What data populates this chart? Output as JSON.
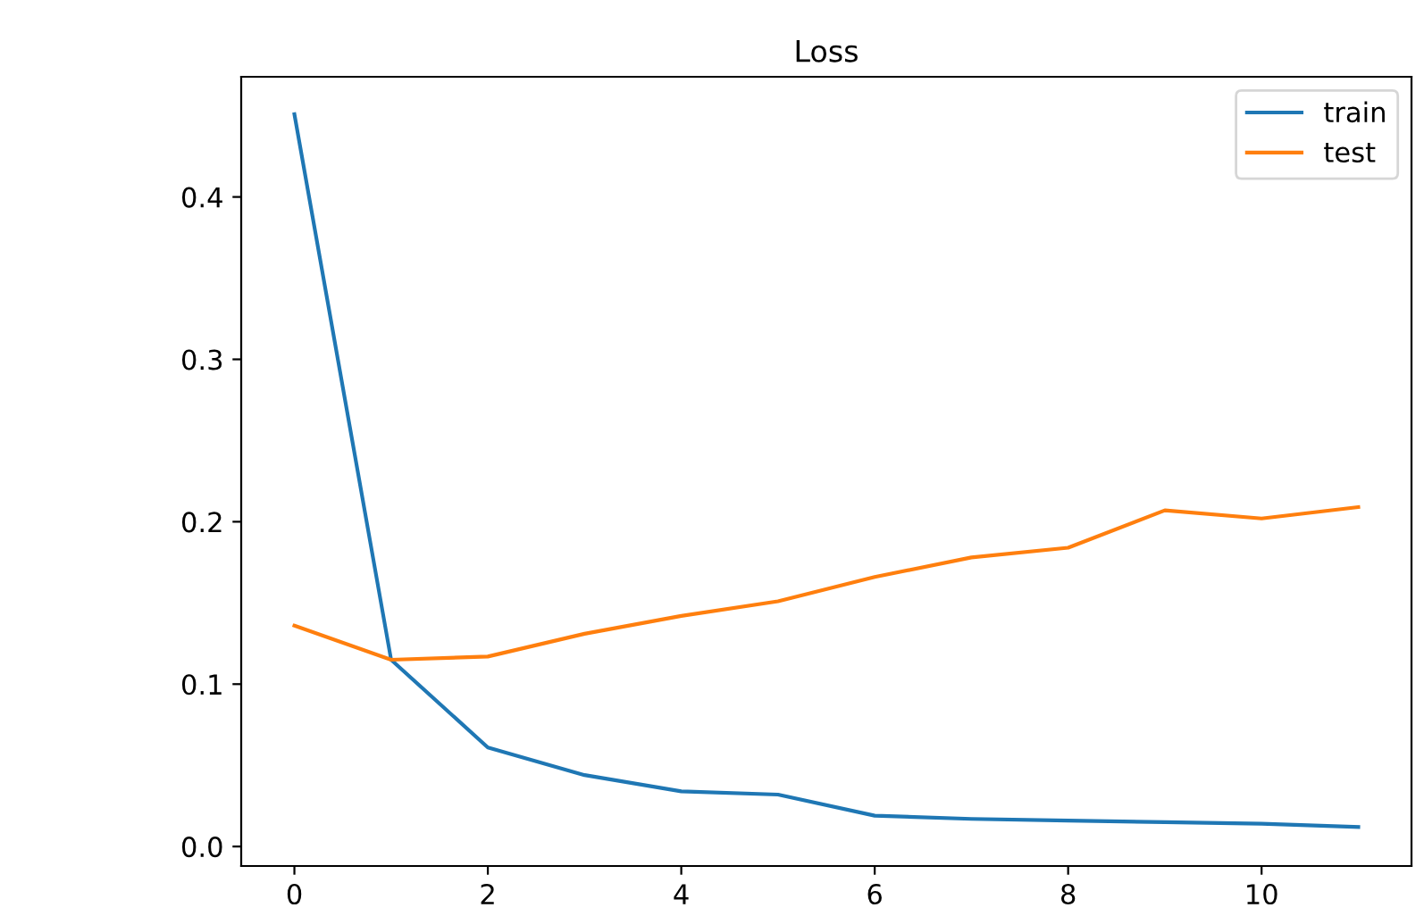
{
  "chart_data": {
    "type": "line",
    "title": "Loss",
    "x": [
      0,
      1,
      2,
      3,
      4,
      5,
      6,
      7,
      8,
      9,
      10,
      11
    ],
    "series": [
      {
        "name": "train",
        "color": "#1f77b4",
        "values": [
          0.451,
          0.115,
          0.061,
          0.044,
          0.034,
          0.032,
          0.019,
          0.017,
          0.016,
          0.015,
          0.014,
          0.012
        ]
      },
      {
        "name": "test",
        "color": "#ff7f0e",
        "values": [
          0.136,
          0.115,
          0.117,
          0.131,
          0.142,
          0.151,
          0.166,
          0.178,
          0.184,
          0.207,
          0.202,
          0.209
        ]
      }
    ],
    "xlim": [
      -0.55,
      11.55
    ],
    "xticks": [
      0,
      2,
      4,
      6,
      8,
      10
    ],
    "ylim": [
      -0.012,
      0.474
    ],
    "yticks": [
      {
        "value": 0,
        "label": "0.0"
      },
      0.1,
      0.2,
      0.3,
      0.4
    ],
    "legend": "top right",
    "grid": false
  }
}
